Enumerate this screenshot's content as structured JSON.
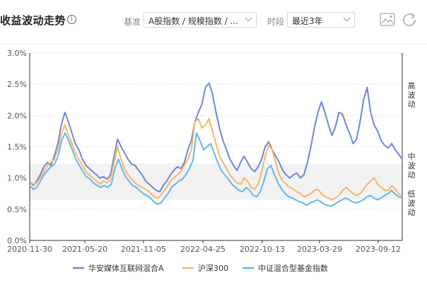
{
  "header": {
    "title": "收益波动走势",
    "info_icon": "i",
    "benchmark_label": "基准",
    "benchmark_value": "A股指数 / 规模指数 / ...",
    "period_label": "时段",
    "period_value": "最近3年"
  },
  "colors": {
    "fund": "#6f87d8",
    "hs300": "#f7b660",
    "index": "#5db9f2",
    "band": "#f2f2f2"
  },
  "chart_data": {
    "type": "line",
    "x_ticks": [
      "2020-11-30",
      "2021-05-20",
      "2021-11-05",
      "2022-04-25",
      "2022-10-13",
      "2023-03-29",
      "2023-09-12"
    ],
    "y_ticks": [
      "0.0%",
      "0.5%",
      "1.0%",
      "1.5%",
      "2.0%",
      "2.5%",
      "3.0%"
    ],
    "ylim": [
      0,
      3.0
    ],
    "volatility_labels": [
      "高波动",
      "中波动",
      "低波动"
    ],
    "medium_band": [
      0.65,
      1.23
    ],
    "legend_position": "bottom",
    "series": [
      {
        "name": "华安媒体互联网混合A",
        "color": "#6f87d8",
        "values": [
          0.95,
          0.88,
          0.95,
          1.05,
          1.18,
          1.25,
          1.2,
          1.35,
          1.55,
          1.85,
          2.05,
          1.9,
          1.72,
          1.55,
          1.45,
          1.3,
          1.2,
          1.15,
          1.1,
          1.05,
          1.0,
          1.02,
          0.98,
          1.05,
          1.35,
          1.62,
          1.5,
          1.4,
          1.3,
          1.22,
          1.2,
          1.12,
          1.05,
          0.95,
          0.9,
          0.85,
          0.8,
          0.78,
          0.88,
          0.95,
          1.05,
          1.12,
          1.18,
          1.15,
          1.25,
          1.45,
          1.6,
          1.9,
          2.05,
          2.18,
          2.45,
          2.52,
          2.35,
          2.05,
          1.8,
          1.6,
          1.45,
          1.3,
          1.2,
          1.12,
          1.25,
          1.35,
          1.25,
          1.15,
          1.1,
          1.18,
          1.3,
          1.5,
          1.58,
          1.45,
          1.35,
          1.25,
          1.12,
          1.05,
          1.0,
          1.05,
          1.08,
          1.0,
          1.05,
          1.25,
          1.5,
          1.8,
          2.05,
          2.22,
          2.05,
          1.85,
          1.68,
          1.82,
          2.05,
          2.02,
          1.85,
          1.72,
          1.55,
          1.62,
          1.9,
          2.25,
          2.45,
          2.05,
          1.85,
          1.75,
          1.6,
          1.52,
          1.48,
          1.55,
          1.45,
          1.38,
          1.3
        ]
      },
      {
        "name": "沪深300",
        "color": "#f7b660",
        "values": [
          0.95,
          0.9,
          0.92,
          1.0,
          1.1,
          1.2,
          1.25,
          1.3,
          1.45,
          1.7,
          1.85,
          1.7,
          1.55,
          1.4,
          1.3,
          1.2,
          1.1,
          1.05,
          1.0,
          0.95,
          0.9,
          0.95,
          0.92,
          0.98,
          1.25,
          1.5,
          1.3,
          1.15,
          1.05,
          0.98,
          0.92,
          0.88,
          0.85,
          0.82,
          0.78,
          0.72,
          0.68,
          0.7,
          0.78,
          0.85,
          0.95,
          1.0,
          1.05,
          1.1,
          1.2,
          1.3,
          1.45,
          1.9,
          1.95,
          1.8,
          1.85,
          1.95,
          1.75,
          1.55,
          1.35,
          1.25,
          1.15,
          1.05,
          0.98,
          0.92,
          0.9,
          1.0,
          0.95,
          0.85,
          0.82,
          0.9,
          1.1,
          1.35,
          1.52,
          1.45,
          1.25,
          1.05,
          0.95,
          0.9,
          0.85,
          0.82,
          0.78,
          0.75,
          0.7,
          0.72,
          0.75,
          0.8,
          0.82,
          0.75,
          0.7,
          0.68,
          0.65,
          0.68,
          0.72,
          0.8,
          0.85,
          0.8,
          0.75,
          0.72,
          0.75,
          0.82,
          0.9,
          0.95,
          1.0,
          0.9,
          0.85,
          0.8,
          0.8,
          0.88,
          0.82,
          0.75,
          0.7
        ]
      },
      {
        "name": "中证混合型基金指数",
        "color": "#5db9f2",
        "values": [
          0.88,
          0.82,
          0.85,
          0.95,
          1.05,
          1.12,
          1.18,
          1.22,
          1.35,
          1.6,
          1.72,
          1.6,
          1.45,
          1.3,
          1.2,
          1.1,
          1.02,
          0.98,
          0.92,
          0.88,
          0.85,
          0.88,
          0.85,
          0.9,
          1.15,
          1.3,
          1.15,
          1.02,
          0.95,
          0.88,
          0.85,
          0.8,
          0.75,
          0.72,
          0.68,
          0.62,
          0.58,
          0.6,
          0.68,
          0.75,
          0.85,
          0.9,
          0.95,
          0.98,
          1.05,
          1.15,
          1.28,
          1.72,
          1.6,
          1.45,
          1.5,
          1.55,
          1.4,
          1.25,
          1.12,
          1.05,
          0.98,
          0.9,
          0.85,
          0.8,
          0.78,
          0.85,
          0.8,
          0.72,
          0.7,
          0.78,
          0.95,
          1.15,
          1.2,
          1.05,
          0.92,
          0.82,
          0.75,
          0.7,
          0.68,
          0.65,
          0.62,
          0.6,
          0.56,
          0.6,
          0.62,
          0.65,
          0.62,
          0.58,
          0.56,
          0.55,
          0.58,
          0.62,
          0.65,
          0.68,
          0.65,
          0.62,
          0.6,
          0.62,
          0.65,
          0.7,
          0.72,
          0.68,
          0.65,
          0.68,
          0.72,
          0.75,
          0.8,
          0.74,
          0.7,
          0.68
        ]
      }
    ]
  }
}
